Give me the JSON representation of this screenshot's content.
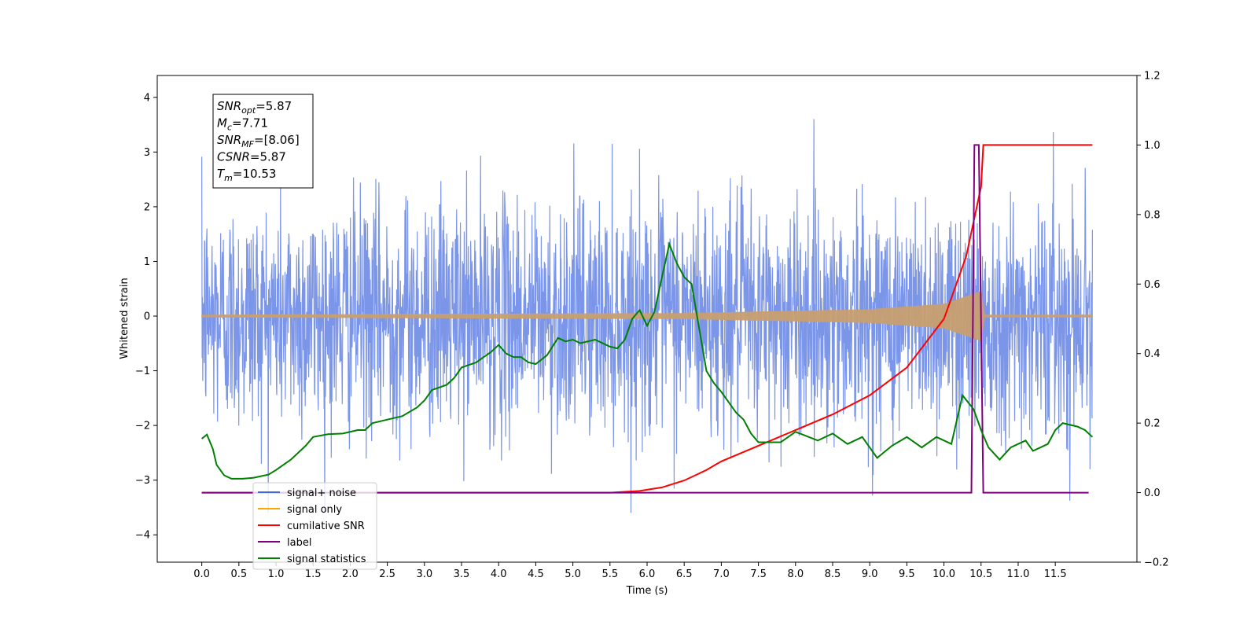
{
  "chart_data": {
    "type": "line",
    "xlabel": "Time (s)",
    "ylabel": "Whitened strain",
    "xlim": [
      -0.6,
      12.6
    ],
    "ylim": [
      -4.5,
      4.4
    ],
    "y2lim": [
      -0.2,
      1.2
    ],
    "x_ticks": [
      "0.0",
      "0.5",
      "1.0",
      "1.5",
      "2.0",
      "2.5",
      "3.0",
      "3.5",
      "4.0",
      "4.5",
      "5.0",
      "5.5",
      "6.0",
      "6.5",
      "7.0",
      "7.5",
      "8.0",
      "8.5",
      "9.0",
      "9.5",
      "10.0",
      "10.5",
      "11.0",
      "11.5"
    ],
    "y_ticks": [
      "4",
      "3",
      "2",
      "1",
      "0",
      "−1",
      "−2",
      "−3",
      "−4"
    ],
    "y2_ticks": [
      "1.2",
      "1.0",
      "0.8",
      "0.6",
      "0.4",
      "0.2",
      "0.0",
      "−0.2"
    ],
    "info_box": [
      {
        "base": "SNR",
        "sub": "opt",
        "value": "=5.87"
      },
      {
        "base": "M",
        "sub": "c",
        "value": "=7.71"
      },
      {
        "base": "SNR",
        "sub": "MF",
        "value": "=[8.06]"
      },
      {
        "base": "CSNR",
        "sub": "",
        "value": "=5.87"
      },
      {
        "base": "T",
        "sub": "m",
        "value": "=10.53"
      }
    ],
    "legend": {
      "placement": "lower-left",
      "entries": [
        {
          "label": "signal+ noise",
          "color": "#4169e1"
        },
        {
          "label": "signal only",
          "color": "#ffa500"
        },
        {
          "label": "cumilative SNR",
          "color": "#ff0000"
        },
        {
          "label": "label",
          "color": "#800080"
        },
        {
          "label": "signal statistics",
          "color": "#008000"
        }
      ]
    },
    "series": [
      {
        "name": "signal+ noise",
        "axis": "left",
        "color": "#7b95e8",
        "noise_sigma": 1.0,
        "x_range": [
          0.0,
          12.0
        ]
      },
      {
        "name": "signal only",
        "axis": "left",
        "color": "#c8a070",
        "chirp_envelope": [
          [
            0.0,
            0.02
          ],
          [
            6.5,
            0.05
          ],
          [
            9.0,
            0.12
          ],
          [
            10.0,
            0.22
          ],
          [
            10.5,
            0.45
          ],
          [
            10.55,
            0.02
          ],
          [
            12.0,
            0.02
          ]
        ]
      },
      {
        "name": "cumilative SNR",
        "axis": "right",
        "color": "#ff0000",
        "points": [
          [
            0,
            0
          ],
          [
            5.5,
            0
          ],
          [
            5.9,
            0.005
          ],
          [
            6.2,
            0.015
          ],
          [
            6.5,
            0.035
          ],
          [
            6.8,
            0.065
          ],
          [
            7.0,
            0.09
          ],
          [
            7.5,
            0.135
          ],
          [
            8.0,
            0.18
          ],
          [
            8.5,
            0.225
          ],
          [
            9.0,
            0.28
          ],
          [
            9.5,
            0.36
          ],
          [
            10.0,
            0.5
          ],
          [
            10.3,
            0.68
          ],
          [
            10.5,
            0.88
          ],
          [
            10.53,
            1.0
          ],
          [
            12.0,
            1.0
          ]
        ]
      },
      {
        "name": "label",
        "axis": "right",
        "color": "#800080",
        "points": [
          [
            0,
            0
          ],
          [
            10.37,
            0
          ],
          [
            10.41,
            1.0
          ],
          [
            10.47,
            1.0
          ],
          [
            10.53,
            0
          ],
          [
            11.95,
            0
          ]
        ]
      },
      {
        "name": "signal statistics",
        "axis": "right",
        "color": "#008000",
        "points": [
          [
            0.0,
            0.155
          ],
          [
            0.07,
            0.167
          ],
          [
            0.15,
            0.125
          ],
          [
            0.2,
            0.08
          ],
          [
            0.3,
            0.05
          ],
          [
            0.4,
            0.04
          ],
          [
            0.55,
            0.04
          ],
          [
            0.7,
            0.043
          ],
          [
            0.9,
            0.052
          ],
          [
            1.0,
            0.065
          ],
          [
            1.2,
            0.095
          ],
          [
            1.4,
            0.135
          ],
          [
            1.5,
            0.16
          ],
          [
            1.7,
            0.168
          ],
          [
            1.9,
            0.17
          ],
          [
            2.1,
            0.18
          ],
          [
            2.2,
            0.18
          ],
          [
            2.3,
            0.2
          ],
          [
            2.5,
            0.21
          ],
          [
            2.7,
            0.22
          ],
          [
            2.9,
            0.245
          ],
          [
            3.0,
            0.265
          ],
          [
            3.1,
            0.295
          ],
          [
            3.3,
            0.31
          ],
          [
            3.4,
            0.33
          ],
          [
            3.5,
            0.36
          ],
          [
            3.7,
            0.375
          ],
          [
            3.8,
            0.39
          ],
          [
            3.9,
            0.405
          ],
          [
            4.0,
            0.425
          ],
          [
            4.1,
            0.4
          ],
          [
            4.2,
            0.39
          ],
          [
            4.3,
            0.39
          ],
          [
            4.4,
            0.375
          ],
          [
            4.5,
            0.37
          ],
          [
            4.65,
            0.395
          ],
          [
            4.8,
            0.445
          ],
          [
            4.9,
            0.435
          ],
          [
            5.0,
            0.44
          ],
          [
            5.1,
            0.43
          ],
          [
            5.3,
            0.44
          ],
          [
            5.5,
            0.42
          ],
          [
            5.6,
            0.415
          ],
          [
            5.7,
            0.44
          ],
          [
            5.8,
            0.5
          ],
          [
            5.9,
            0.525
          ],
          [
            6.0,
            0.48
          ],
          [
            6.1,
            0.52
          ],
          [
            6.2,
            0.62
          ],
          [
            6.3,
            0.715
          ],
          [
            6.4,
            0.66
          ],
          [
            6.5,
            0.62
          ],
          [
            6.6,
            0.6
          ],
          [
            6.8,
            0.35
          ],
          [
            6.9,
            0.315
          ],
          [
            7.0,
            0.29
          ],
          [
            7.2,
            0.23
          ],
          [
            7.3,
            0.21
          ],
          [
            7.4,
            0.17
          ],
          [
            7.5,
            0.145
          ],
          [
            7.8,
            0.145
          ],
          [
            8.0,
            0.175
          ],
          [
            8.3,
            0.15
          ],
          [
            8.5,
            0.17
          ],
          [
            8.7,
            0.14
          ],
          [
            8.9,
            0.16
          ],
          [
            9.1,
            0.1
          ],
          [
            9.3,
            0.135
          ],
          [
            9.5,
            0.16
          ],
          [
            9.7,
            0.13
          ],
          [
            9.9,
            0.16
          ],
          [
            10.1,
            0.14
          ],
          [
            10.25,
            0.28
          ],
          [
            10.4,
            0.24
          ],
          [
            10.5,
            0.18
          ],
          [
            10.6,
            0.13
          ],
          [
            10.75,
            0.095
          ],
          [
            10.9,
            0.13
          ],
          [
            11.1,
            0.15
          ],
          [
            11.2,
            0.12
          ],
          [
            11.4,
            0.14
          ],
          [
            11.5,
            0.18
          ],
          [
            11.6,
            0.2
          ],
          [
            11.8,
            0.19
          ],
          [
            11.9,
            0.18
          ],
          [
            12.0,
            0.16
          ]
        ]
      }
    ]
  }
}
